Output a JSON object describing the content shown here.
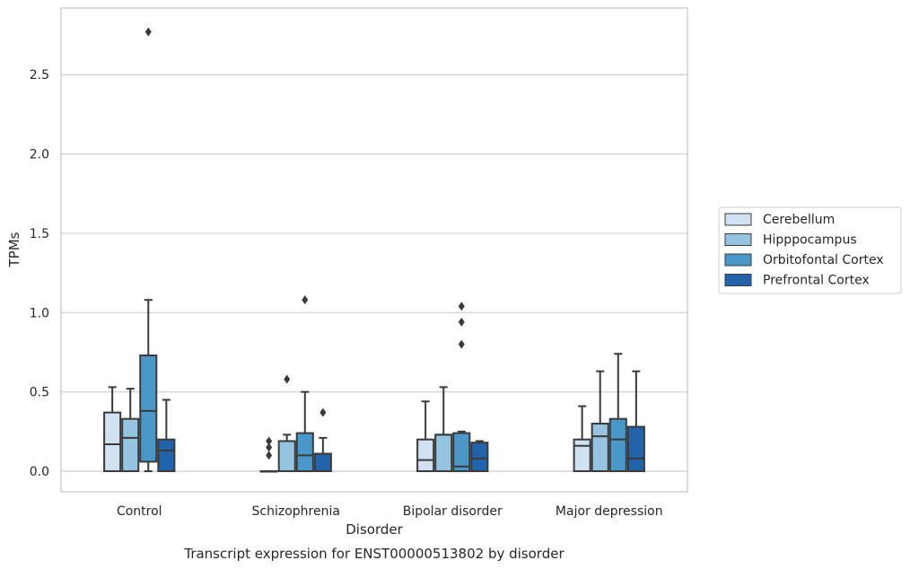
{
  "chart_data": {
    "type": "box",
    "caption": "Transcript expression for ENST00000513802 by disorder",
    "xlabel": "Disorder",
    "ylabel": "TPMs",
    "ylim": [
      -0.13,
      2.92
    ],
    "yticks": [
      0.0,
      0.5,
      1.0,
      1.5,
      2.0,
      2.5
    ],
    "ytick_labels": [
      "0.0",
      "0.5",
      "1.0",
      "1.5",
      "2.0",
      "2.5"
    ],
    "grid": "horizontal",
    "legend_position": "right",
    "categories": [
      "Control",
      "Schizophrenia",
      "Bipolar disorder",
      "Major depression"
    ],
    "series": [
      {
        "name": "Cerebellum",
        "color": "#d0e1f2",
        "boxes": [
          {
            "whisker_low": 0.0,
            "q1": 0.0,
            "median": 0.17,
            "q3": 0.37,
            "whisker_high": 0.53,
            "outliers": []
          },
          {
            "whisker_low": 0.0,
            "q1": 0.0,
            "median": 0.0,
            "q3": 0.0,
            "whisker_high": 0.0,
            "outliers": [
              0.1,
              0.15,
              0.19
            ]
          },
          {
            "whisker_low": 0.0,
            "q1": 0.0,
            "median": 0.07,
            "q3": 0.2,
            "whisker_high": 0.44,
            "outliers": []
          },
          {
            "whisker_low": 0.0,
            "q1": 0.0,
            "median": 0.16,
            "q3": 0.2,
            "whisker_high": 0.41,
            "outliers": []
          }
        ]
      },
      {
        "name": "Hipppocampus",
        "color": "#94c4df",
        "boxes": [
          {
            "whisker_low": 0.0,
            "q1": 0.0,
            "median": 0.21,
            "q3": 0.33,
            "whisker_high": 0.52,
            "outliers": []
          },
          {
            "whisker_low": 0.0,
            "q1": 0.0,
            "median": 0.19,
            "q3": 0.19,
            "whisker_high": 0.23,
            "outliers": [
              0.58
            ]
          },
          {
            "whisker_low": 0.0,
            "q1": 0.0,
            "median": 0.23,
            "q3": 0.23,
            "whisker_high": 0.53,
            "outliers": []
          },
          {
            "whisker_low": 0.0,
            "q1": 0.0,
            "median": 0.22,
            "q3": 0.3,
            "whisker_high": 0.63,
            "outliers": []
          }
        ]
      },
      {
        "name": "Orbitofontal Cortex",
        "color": "#4a98c9",
        "boxes": [
          {
            "whisker_low": 0.0,
            "q1": 0.06,
            "median": 0.38,
            "q3": 0.73,
            "whisker_high": 1.08,
            "outliers": [
              2.77
            ]
          },
          {
            "whisker_low": 0.0,
            "q1": 0.0,
            "median": 0.1,
            "q3": 0.24,
            "whisker_high": 0.5,
            "outliers": [
              1.08
            ]
          },
          {
            "whisker_low": 0.0,
            "q1": 0.0,
            "median": 0.03,
            "q3": 0.24,
            "whisker_high": 0.25,
            "outliers": [
              0.8,
              0.94,
              1.04
            ]
          },
          {
            "whisker_low": 0.0,
            "q1": 0.0,
            "median": 0.2,
            "q3": 0.33,
            "whisker_high": 0.74,
            "outliers": []
          }
        ]
      },
      {
        "name": "Prefrontal Cortex",
        "color": "#2164ab",
        "boxes": [
          {
            "whisker_low": 0.0,
            "q1": 0.0,
            "median": 0.13,
            "q3": 0.2,
            "whisker_high": 0.45,
            "outliers": []
          },
          {
            "whisker_low": 0.0,
            "q1": 0.0,
            "median": 0.11,
            "q3": 0.11,
            "whisker_high": 0.21,
            "outliers": [
              0.37
            ]
          },
          {
            "whisker_low": 0.0,
            "q1": 0.0,
            "median": 0.08,
            "q3": 0.18,
            "whisker_high": 0.19,
            "outliers": []
          },
          {
            "whisker_low": 0.0,
            "q1": 0.0,
            "median": 0.08,
            "q3": 0.28,
            "whisker_high": 0.63,
            "outliers": []
          }
        ]
      }
    ]
  }
}
